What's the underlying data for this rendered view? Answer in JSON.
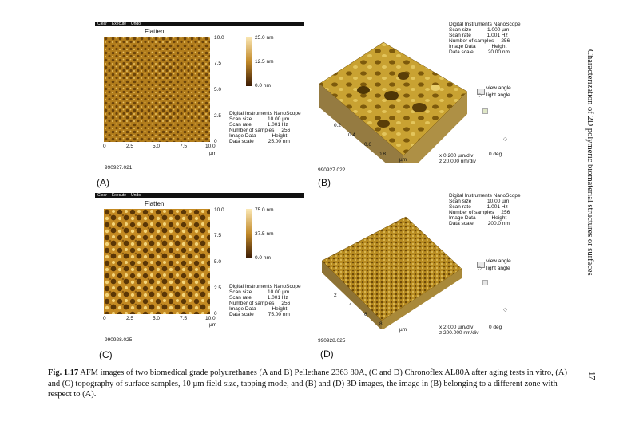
{
  "menubar": [
    "Clear",
    "Execute",
    "Undo"
  ],
  "panels_2d": [
    {
      "title": "Flatten",
      "y_ticks": [
        "10.0",
        "7.5",
        "5.0",
        "2.5",
        "0"
      ],
      "x_ticks": [
        "0",
        "2.5",
        "5.0",
        "7.5",
        "10.0"
      ],
      "unit": "µm",
      "colorbar": [
        "25.0 nm",
        "12.5 nm",
        "0.0 nm"
      ],
      "meta_header": "Digital Instruments NanoScope",
      "meta_lines": [
        "Scan size           10.00 µm",
        "Scan rate           1.001 Hz",
        "Number of samples     256",
        "Image Data           Height",
        "Data scale          25.00 nm"
      ],
      "image_id": "990927.021",
      "letter": "(A)"
    },
    {
      "title": "Flatten",
      "y_ticks": [
        "10.0",
        "7.5",
        "5.0",
        "2.5",
        "0"
      ],
      "x_ticks": [
        "0",
        "2.5",
        "5.0",
        "7.5",
        "10.0"
      ],
      "unit": "µm",
      "colorbar": [
        "75.0 nm",
        "37.5 nm",
        "0.0 nm"
      ],
      "meta_header": "Digital Instruments NanoScope",
      "meta_lines": [
        "Scan size           10.00 µm",
        "Scan rate           1.001 Hz",
        "Number of samples     256",
        "Image Data           Height",
        "Data scale          75.00 nm"
      ],
      "image_id": "990928.025",
      "letter": "(C)"
    }
  ],
  "panels_3d": [
    {
      "meta_header": "Digital Instruments NanoScope",
      "meta_lines": [
        "Scan size           1.000 µm",
        "Scan rate           1.001 Hz",
        "Number of samples     256",
        "Image Data           Height",
        "Data scale          20.00 nm"
      ],
      "axis_ticks": [
        "0.2",
        "0.4",
        "0.6",
        "0.8"
      ],
      "unit": "µm",
      "view_angle": "view angle",
      "light_angle": "light angle",
      "deg": "0 deg",
      "scale_x": "x  0.200 µm/div",
      "scale_z": "z  20.000 nm/div",
      "image_id": "990927.022",
      "letter": "(B)"
    },
    {
      "meta_header": "Digital Instruments NanoScope",
      "meta_lines": [
        "Scan size           10.00 µm",
        "Scan rate           1.001 Hz",
        "Number of samples     256",
        "Image Data           Height",
        "Data scale          200.0 nm"
      ],
      "axis_ticks": [
        "2",
        "4",
        "6",
        "8"
      ],
      "unit": "µm",
      "view_angle": "view angle",
      "light_angle": "light angle",
      "deg": "0 deg",
      "scale_x": "x  2.000 µm/div",
      "scale_z": "z  200.000 nm/div",
      "image_id": "990928.025",
      "letter": "(D)"
    }
  ],
  "side_text": "Characterization of 2D polymeric biomaterial structures or surfaces",
  "page_number": "17",
  "caption": {
    "label": "Fig. 1.17",
    "text": "  AFM images of two biomedical grade polyurethanes (A and B) Pellethane 2363 80A, (C and D) Chronoflex AL80A after aging tests in vitro, (A) and (C) topography of surface samples, 10 µm field size, tapping mode, and (B) and (D) 3D images, the image in (B) belonging to a different zone with respect to (A)."
  },
  "colors": {
    "afm_dark": "#5a3a08",
    "afm_mid": "#b8861e",
    "afm_light": "#f2d27a"
  }
}
